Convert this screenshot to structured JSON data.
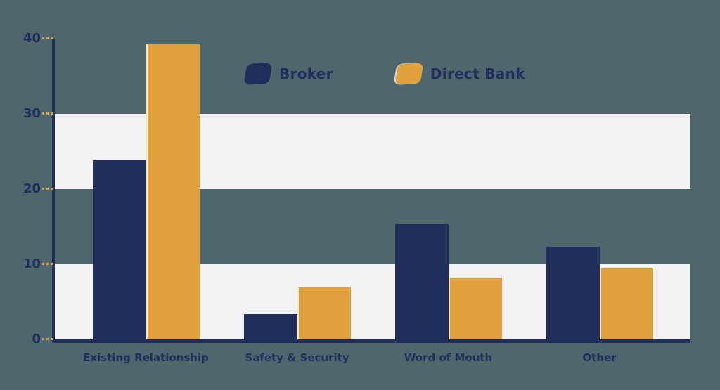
{
  "chart_data": {
    "type": "bar",
    "title": "",
    "xlabel": "",
    "ylabel": "",
    "categories": [
      "Existing Relationship",
      "Safety & Security",
      "Word of Mouth",
      "Other"
    ],
    "series": [
      {
        "name": "Broker",
        "color": "#202e5c",
        "values": [
          23.8,
          3.4,
          15.3,
          12.3
        ]
      },
      {
        "name": "Direct Bank",
        "color": "#e1a23d",
        "values": [
          39.3,
          6.9,
          8.1,
          9.4
        ]
      }
    ],
    "ylim": [
      0,
      40
    ],
    "yticks": [
      0,
      10,
      20,
      30,
      40
    ],
    "grid": "off",
    "background_bands": [
      [
        0,
        10
      ],
      [
        20,
        30
      ]
    ],
    "legend_position": "top-center"
  },
  "colors": {
    "background": "#4d676d",
    "band": "#f2f1f3",
    "axis": "#202e5c",
    "tick_mark": "#e1a23d",
    "text": "#202e5c",
    "broker": "#202e5c",
    "direct_bank": "#e1a23d"
  },
  "legend": {
    "items": [
      {
        "label": "Broker",
        "color": "#202e5c"
      },
      {
        "label": "Direct Bank",
        "color": "#e1a23d"
      }
    ]
  }
}
